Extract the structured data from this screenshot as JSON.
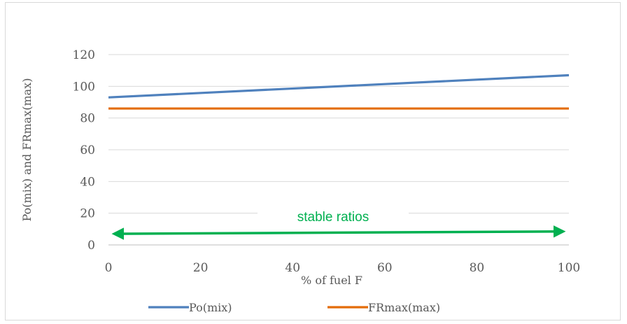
{
  "chart_data": {
    "type": "line",
    "title": "",
    "xlabel": "% of fuel F",
    "ylabel": "Po(mix) and FRmax(max)",
    "xlim": [
      0,
      100
    ],
    "ylim": [
      0,
      120
    ],
    "xticks": [
      0,
      20,
      40,
      60,
      80,
      100
    ],
    "yticks": [
      0,
      20,
      40,
      60,
      80,
      100,
      120
    ],
    "grid": "horizontal",
    "legend_position": "bottom",
    "series": [
      {
        "name": "Po(mix)",
        "color": "#4f81bd",
        "x": [
          0,
          100
        ],
        "values": [
          93,
          107
        ]
      },
      {
        "name": "FRmax(max)",
        "color": "#e36c09",
        "x": [
          0,
          100
        ],
        "values": [
          86,
          86
        ]
      }
    ],
    "annotation": {
      "text": "stable ratios",
      "color": "#00b050",
      "arrow": "double-headed",
      "x_start": 0,
      "x_end": 100,
      "y_start": 7,
      "y_end": 8.5
    }
  }
}
